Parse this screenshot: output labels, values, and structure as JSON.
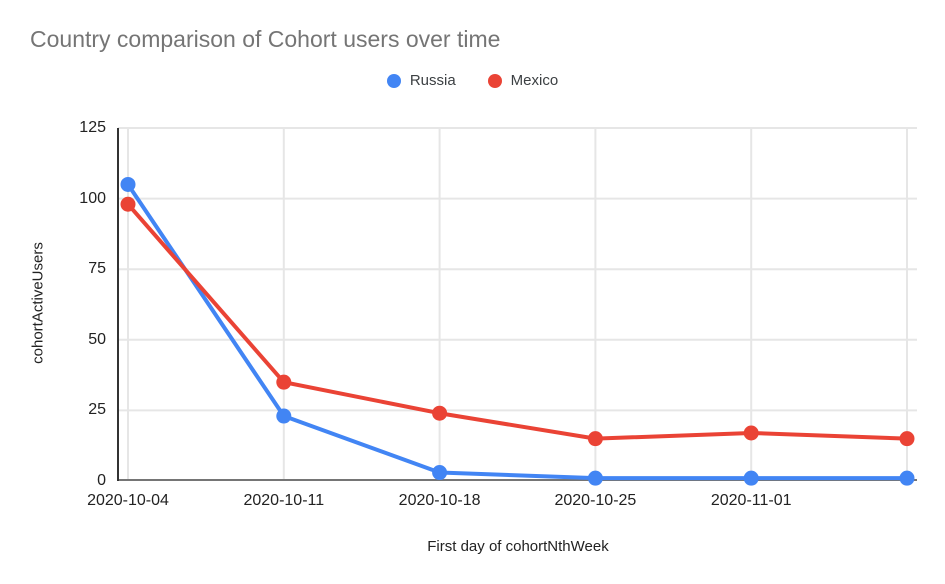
{
  "title": "Country comparison of Cohort users over time",
  "legend": {
    "items": [
      {
        "label": "Russia",
        "color": "#4285F4"
      },
      {
        "label": "Mexico",
        "color": "#EA4335"
      }
    ]
  },
  "chart_data": {
    "type": "line",
    "title": "Country comparison of Cohort users over time",
    "xlabel": "First day of cohortNthWeek",
    "ylabel": "cohortActiveUsers",
    "categories": [
      "2020-10-04",
      "2020-10-11",
      "2020-10-18",
      "2020-10-25",
      "2020-11-01",
      ""
    ],
    "series": [
      {
        "name": "Russia",
        "color": "#4285F4",
        "values": [
          105,
          23,
          3,
          1,
          1,
          1
        ]
      },
      {
        "name": "Mexico",
        "color": "#EA4335",
        "values": [
          98,
          35,
          24,
          15,
          17,
          15
        ]
      }
    ],
    "ylim": [
      0,
      125
    ],
    "yticks": [
      0,
      25,
      50,
      75,
      100,
      125
    ],
    "ytick_labels": [
      "0",
      "25",
      "50",
      "75",
      "100",
      "125"
    ],
    "grid": true,
    "legend_position": "top",
    "colors": {
      "gridline": "#e6e6e6",
      "y_axis_line": "#333333",
      "x_axis_line": "#757575",
      "title_text": "#757575",
      "tick_text": "#222222"
    }
  }
}
